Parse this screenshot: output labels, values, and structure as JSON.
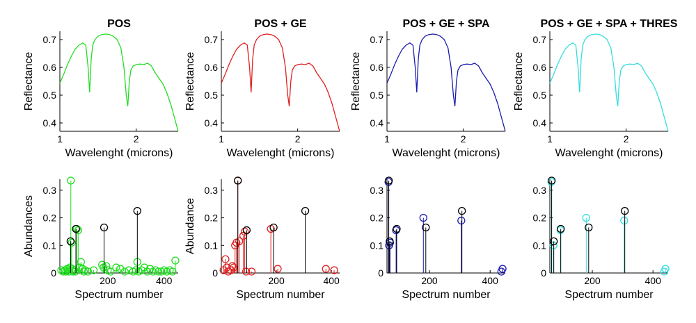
{
  "chart_data": [
    {
      "type": "line",
      "title": "POS",
      "xlabel": "Wavelenght (microns)",
      "ylabel": "Reflectance",
      "color": "#22dd22",
      "xlim": [
        1.0,
        2.55
      ],
      "ylim": [
        0.37,
        0.73
      ],
      "xticks": [
        1,
        2
      ],
      "yticks": [
        0.4,
        0.5,
        0.6,
        0.7
      ],
      "x": [
        1.0,
        1.05,
        1.1,
        1.15,
        1.2,
        1.25,
        1.3,
        1.34,
        1.37,
        1.39,
        1.41,
        1.43,
        1.46,
        1.5,
        1.55,
        1.6,
        1.65,
        1.7,
        1.75,
        1.8,
        1.84,
        1.87,
        1.89,
        1.91,
        1.93,
        1.96,
        2.0,
        2.05,
        2.1,
        2.15,
        2.2,
        2.25,
        2.3,
        2.35,
        2.4,
        2.45,
        2.5,
        2.55
      ],
      "y": [
        0.543,
        0.575,
        0.61,
        0.64,
        0.665,
        0.68,
        0.688,
        0.68,
        0.6,
        0.51,
        0.63,
        0.68,
        0.7,
        0.712,
        0.718,
        0.72,
        0.718,
        0.712,
        0.7,
        0.67,
        0.6,
        0.5,
        0.46,
        0.55,
        0.59,
        0.605,
        0.61,
        0.612,
        0.61,
        0.615,
        0.605,
        0.58,
        0.56,
        0.54,
        0.51,
        0.47,
        0.42,
        0.37
      ]
    },
    {
      "type": "line",
      "title": "POS + GE",
      "xlabel": "Wavelenght (microns)",
      "ylabel": "Reflectance",
      "color": "#e02020",
      "xlim": [
        1.0,
        2.55
      ],
      "ylim": [
        0.37,
        0.73
      ],
      "xticks": [
        1,
        2
      ],
      "yticks": [
        0.4,
        0.5,
        0.6,
        0.7
      ],
      "x": [
        1.0,
        1.05,
        1.1,
        1.15,
        1.2,
        1.25,
        1.3,
        1.34,
        1.37,
        1.39,
        1.41,
        1.43,
        1.46,
        1.5,
        1.55,
        1.6,
        1.65,
        1.7,
        1.75,
        1.8,
        1.84,
        1.87,
        1.89,
        1.91,
        1.93,
        1.96,
        2.0,
        2.05,
        2.1,
        2.15,
        2.2,
        2.25,
        2.3,
        2.35,
        2.4,
        2.45,
        2.5,
        2.55
      ],
      "y": [
        0.543,
        0.575,
        0.61,
        0.64,
        0.665,
        0.68,
        0.688,
        0.68,
        0.6,
        0.51,
        0.63,
        0.68,
        0.7,
        0.712,
        0.718,
        0.72,
        0.718,
        0.712,
        0.7,
        0.67,
        0.6,
        0.5,
        0.46,
        0.55,
        0.59,
        0.605,
        0.61,
        0.612,
        0.61,
        0.615,
        0.605,
        0.58,
        0.56,
        0.54,
        0.51,
        0.47,
        0.42,
        0.37
      ]
    },
    {
      "type": "line",
      "title": "POS + GE + SPA",
      "xlabel": "Wavelenght (microns)",
      "ylabel": "Reflectance",
      "color": "#1a1ab0",
      "xlim": [
        1.0,
        2.55
      ],
      "ylim": [
        0.37,
        0.73
      ],
      "xticks": [
        1,
        2
      ],
      "yticks": [
        0.4,
        0.5,
        0.6,
        0.7
      ],
      "x": [
        1.0,
        1.05,
        1.1,
        1.15,
        1.2,
        1.25,
        1.3,
        1.34,
        1.37,
        1.39,
        1.41,
        1.43,
        1.46,
        1.5,
        1.55,
        1.6,
        1.65,
        1.7,
        1.75,
        1.8,
        1.84,
        1.87,
        1.89,
        1.91,
        1.93,
        1.96,
        2.0,
        2.05,
        2.1,
        2.15,
        2.2,
        2.25,
        2.3,
        2.35,
        2.4,
        2.45,
        2.5,
        2.55
      ],
      "y": [
        0.543,
        0.575,
        0.61,
        0.64,
        0.665,
        0.68,
        0.688,
        0.68,
        0.6,
        0.51,
        0.63,
        0.68,
        0.7,
        0.712,
        0.718,
        0.72,
        0.718,
        0.712,
        0.7,
        0.67,
        0.6,
        0.5,
        0.46,
        0.55,
        0.59,
        0.605,
        0.61,
        0.612,
        0.61,
        0.615,
        0.605,
        0.58,
        0.56,
        0.54,
        0.51,
        0.47,
        0.42,
        0.37
      ]
    },
    {
      "type": "line",
      "title": "POS + GE + SPA + THRES",
      "xlabel": "Wavelenght (microns)",
      "ylabel": "Reflectance",
      "color": "#33dddd",
      "xlim": [
        1.0,
        2.55
      ],
      "ylim": [
        0.37,
        0.73
      ],
      "xticks": [
        1,
        2
      ],
      "yticks": [
        0.4,
        0.5,
        0.6,
        0.7
      ],
      "x": [
        1.0,
        1.05,
        1.1,
        1.15,
        1.2,
        1.25,
        1.3,
        1.34,
        1.37,
        1.39,
        1.41,
        1.43,
        1.46,
        1.5,
        1.55,
        1.6,
        1.65,
        1.7,
        1.75,
        1.8,
        1.84,
        1.87,
        1.89,
        1.91,
        1.93,
        1.96,
        2.0,
        2.05,
        2.1,
        2.15,
        2.2,
        2.25,
        2.3,
        2.35,
        2.4,
        2.45,
        2.5,
        2.55
      ],
      "y": [
        0.543,
        0.575,
        0.61,
        0.64,
        0.665,
        0.68,
        0.688,
        0.68,
        0.6,
        0.51,
        0.63,
        0.68,
        0.7,
        0.712,
        0.718,
        0.72,
        0.718,
        0.712,
        0.7,
        0.67,
        0.6,
        0.5,
        0.46,
        0.55,
        0.59,
        0.605,
        0.61,
        0.612,
        0.61,
        0.615,
        0.605,
        0.58,
        0.56,
        0.54,
        0.51,
        0.47,
        0.42,
        0.37
      ]
    },
    {
      "type": "scatter",
      "subtype": "stem",
      "xlabel": "Spectrum number",
      "ylabel": "Abundances",
      "xlim": [
        30,
        450
      ],
      "ylim": [
        0,
        0.34
      ],
      "xticks": [
        200,
        400
      ],
      "yticks": [
        0,
        0.1,
        0.2,
        0.3
      ],
      "series": [
        {
          "color": "#22dd22",
          "x": [
            35,
            42,
            48,
            52,
            56,
            60,
            63,
            66,
            69,
            72,
            74,
            76,
            80,
            85,
            90,
            95,
            100,
            105,
            110,
            115,
            120,
            130,
            150,
            180,
            185,
            195,
            200,
            210,
            230,
            245,
            260,
            275,
            290,
            300,
            305,
            310,
            320,
            330,
            340,
            350,
            360,
            370,
            380,
            390,
            400,
            410,
            420,
            430,
            440
          ],
          "y": [
            0.01,
            0.005,
            0.01,
            0.005,
            0.015,
            0.01,
            0.005,
            0.02,
            0.335,
            0.11,
            0.015,
            0.005,
            0.01,
            0.005,
            0.16,
            0.155,
            0.02,
            0.04,
            0.015,
            0.005,
            0.01,
            0.005,
            0.01,
            0.03,
            0.02,
            0.025,
            0.01,
            0.005,
            0.02,
            0.015,
            0.005,
            0.01,
            0.005,
            0.01,
            0.04,
            0.005,
            0.01,
            0.02,
            0.005,
            0.015,
            0.005,
            0.01,
            0.005,
            0.005,
            0.01,
            0.005,
            0.01,
            0.005,
            0.045
          ]
        },
        {
          "color": "#000000",
          "x": [
            68,
            87,
            187,
            305
          ],
          "y": [
            0.115,
            0.16,
            0.165,
            0.225
          ]
        }
      ]
    },
    {
      "type": "scatter",
      "subtype": "stem",
      "xlabel": "Spectrum number",
      "ylabel": "Abundance",
      "xlim": [
        0,
        430
      ],
      "ylim": [
        0,
        0.34
      ],
      "xticks": [
        200,
        400
      ],
      "yticks": [
        0,
        0.1,
        0.2,
        0.3
      ],
      "series": [
        {
          "color": "#e02020",
          "x": [
            8,
            15,
            20,
            25,
            35,
            40,
            45,
            50,
            55,
            60,
            65,
            80,
            85,
            90,
            110,
            180,
            205,
            380,
            410
          ],
          "y": [
            0.01,
            0.05,
            0.02,
            0.005,
            0.01,
            0.025,
            0.02,
            0.1,
            0.11,
            0.335,
            0.115,
            0.135,
            0.15,
            0.005,
            0.005,
            0.16,
            0.015,
            0.015,
            0.01
          ]
        },
        {
          "color": "#000000",
          "x": [
            60,
            92,
            190,
            305
          ],
          "y": [
            0.335,
            0.155,
            0.165,
            0.225
          ]
        }
      ]
    },
    {
      "type": "scatter",
      "subtype": "stem",
      "xlabel": "Spectrum number",
      "ylabel": "",
      "xlim": [
        60,
        450
      ],
      "ylim": [
        0,
        0.34
      ],
      "xticks": [
        200,
        400
      ],
      "yticks": [
        0,
        0.1,
        0.2,
        0.3
      ],
      "series": [
        {
          "color": "#1a1ab0",
          "x": [
            65,
            67,
            70,
            90,
            180,
            305,
            437,
            441
          ],
          "y": [
            0.33,
            0.1,
            0.11,
            0.155,
            0.2,
            0.19,
            0.005,
            0.015
          ]
        },
        {
          "color": "#000000",
          "x": [
            66,
            69,
            92,
            188,
            307
          ],
          "y": [
            0.335,
            0.115,
            0.16,
            0.165,
            0.225
          ]
        }
      ]
    },
    {
      "type": "scatter",
      "subtype": "stem",
      "xlabel": "Spectrum number",
      "ylabel": "",
      "xlim": [
        60,
        450
      ],
      "ylim": [
        0,
        0.34
      ],
      "xticks": [
        200,
        400
      ],
      "yticks": [
        0,
        0.1,
        0.2,
        0.3
      ],
      "series": [
        {
          "color": "#33dddd",
          "x": [
            65,
            72,
            95,
            180,
            305,
            437,
            441
          ],
          "y": [
            0.33,
            0.1,
            0.155,
            0.2,
            0.19,
            0.005,
            0.015
          ]
        },
        {
          "color": "#000000",
          "x": [
            66,
            73,
            96,
            188,
            307
          ],
          "y": [
            0.335,
            0.115,
            0.16,
            0.165,
            0.225
          ]
        }
      ]
    }
  ]
}
